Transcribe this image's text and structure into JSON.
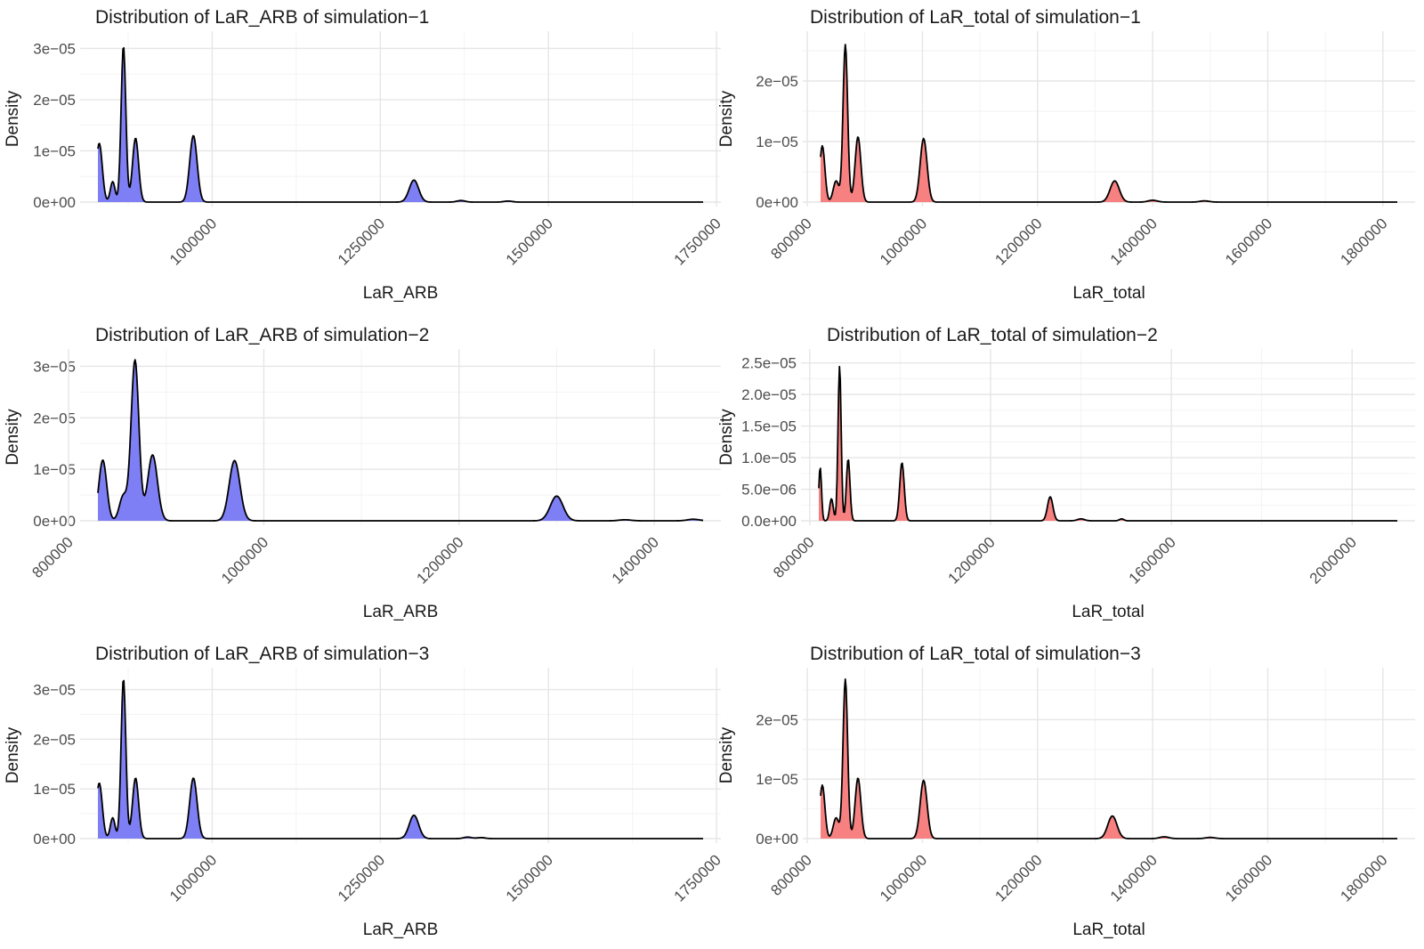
{
  "chart_data": [
    {
      "type": "area",
      "title": "Distribution of LaR_ARB of simulation−1",
      "xlabel": "LaR_ARB",
      "ylabel": "Density",
      "fill": "#7f7ff5",
      "xlim": [
        830000,
        1730000
      ],
      "ylim": [
        0,
        3.25e-05
      ],
      "x_ticks": [
        1000000,
        1250000,
        1500000,
        1750000
      ],
      "x_tick_labels": [
        "1000000",
        "1250000",
        "1500000",
        "1750000"
      ],
      "y_ticks": [
        0,
        1e-05,
        2e-05,
        3e-05
      ],
      "y_tick_labels": [
        "0e+00",
        "1e−05",
        "2e−05",
        "3e−05"
      ],
      "components": [
        {
          "mean": 832000,
          "sd": 4500,
          "height": 1.15e-05
        },
        {
          "mean": 852000,
          "sd": 3500,
          "height": 4e-06
        },
        {
          "mean": 868000,
          "sd": 3500,
          "height": 3.05e-05
        },
        {
          "mean": 886000,
          "sd": 4500,
          "height": 1.25e-05
        },
        {
          "mean": 972000,
          "sd": 5500,
          "height": 1.3e-05
        },
        {
          "mean": 1300000,
          "sd": 7000,
          "height": 4.3e-06
        },
        {
          "mean": 1370000,
          "sd": 6000,
          "height": 3e-07
        },
        {
          "mean": 1440000,
          "sd": 6000,
          "height": 2e-07
        }
      ]
    },
    {
      "type": "area",
      "title": "Distribution of LaR_total of simulation−1",
      "xlabel": "LaR_total",
      "ylabel": "Density",
      "fill": "#f78080",
      "xlim": [
        823000,
        1825000
      ],
      "ylim": [
        0,
        2.75e-05
      ],
      "x_ticks": [
        800000,
        1000000,
        1200000,
        1400000,
        1600000,
        1800000
      ],
      "x_tick_labels": [
        "800000",
        "1000000",
        "1200000",
        "1400000",
        "1600000",
        "1800000"
      ],
      "y_ticks": [
        0,
        1e-05,
        2e-05
      ],
      "y_tick_labels": [
        "0e+00",
        "1e−05",
        "2e−05"
      ],
      "components": [
        {
          "mean": 826000,
          "sd": 4500,
          "height": 9.3e-06
        },
        {
          "mean": 850000,
          "sd": 5000,
          "height": 3.5e-06
        },
        {
          "mean": 866000,
          "sd": 4000,
          "height": 2.6e-05
        },
        {
          "mean": 888000,
          "sd": 5000,
          "height": 1.08e-05
        },
        {
          "mean": 1002000,
          "sd": 6000,
          "height": 1.05e-05
        },
        {
          "mean": 1334000,
          "sd": 8000,
          "height": 3.5e-06
        },
        {
          "mean": 1400000,
          "sd": 8000,
          "height": 3e-07
        },
        {
          "mean": 1490000,
          "sd": 8000,
          "height": 2e-07
        }
      ]
    },
    {
      "type": "area",
      "title": "Distribution of LaR_ARB of simulation−2",
      "xlabel": "LaR_ARB",
      "ylabel": "Density",
      "fill": "#7f7ff5",
      "xlim": [
        830000,
        1450000
      ],
      "ylim": [
        0,
        3.25e-05
      ],
      "x_ticks": [
        800000,
        1000000,
        1200000,
        1400000
      ],
      "x_tick_labels": [
        "800000",
        "1000000",
        "1200000",
        "1400000"
      ],
      "y_ticks": [
        0,
        1e-05,
        2e-05,
        3e-05
      ],
      "y_tick_labels": [
        "0e+00",
        "1e−05",
        "2e−05",
        "3e−05"
      ],
      "components": [
        {
          "mean": 835000,
          "sd": 4000,
          "height": 1.18e-05
        },
        {
          "mean": 856000,
          "sd": 4000,
          "height": 4.8e-06
        },
        {
          "mean": 868000,
          "sd": 4000,
          "height": 3.12e-05
        },
        {
          "mean": 886000,
          "sd": 5000,
          "height": 1.28e-05
        },
        {
          "mean": 970000,
          "sd": 5500,
          "height": 1.17e-05
        },
        {
          "mean": 1300000,
          "sd": 6500,
          "height": 4.8e-06
        },
        {
          "mean": 1370000,
          "sd": 6000,
          "height": 2e-07
        },
        {
          "mean": 1440000,
          "sd": 6000,
          "height": 3e-07
        }
      ]
    },
    {
      "type": "area",
      "title": "Distribution of LaR_total of simulation−2",
      "xlabel": "LaR_total",
      "ylabel": "Density",
      "fill": "#f78080",
      "xlim": [
        820000,
        2100000
      ],
      "ylim": [
        0,
        2.65e-05
      ],
      "x_ticks": [
        800000,
        1200000,
        1600000,
        2000000
      ],
      "x_tick_labels": [
        "800000",
        "1200000",
        "1600000",
        "2000000"
      ],
      "y_ticks": [
        0,
        5e-06,
        1e-05,
        1.5e-05,
        2e-05,
        2.5e-05
      ],
      "y_tick_labels": [
        "0.0e+00",
        "5.0e−06",
        "1.0e−05",
        "1.5e−05",
        "2.0e−05",
        "2.5e−05"
      ],
      "components": [
        {
          "mean": 823000,
          "sd": 3000,
          "height": 8.5e-06
        },
        {
          "mean": 848000,
          "sd": 4000,
          "height": 3.5e-06
        },
        {
          "mean": 866000,
          "sd": 3500,
          "height": 2.45e-05
        },
        {
          "mean": 885000,
          "sd": 4000,
          "height": 9.8e-06
        },
        {
          "mean": 1004000,
          "sd": 5000,
          "height": 9.2e-06
        },
        {
          "mean": 1332000,
          "sd": 6000,
          "height": 3.8e-06
        },
        {
          "mean": 1400000,
          "sd": 8000,
          "height": 3e-07
        },
        {
          "mean": 1490000,
          "sd": 5000,
          "height": 3e-07
        }
      ]
    },
    {
      "type": "area",
      "title": "Distribution of LaR_ARB of simulation−3",
      "xlabel": "LaR_ARB",
      "ylabel": "Density",
      "fill": "#7f7ff5",
      "xlim": [
        830000,
        1730000
      ],
      "ylim": [
        0,
        3.35e-05
      ],
      "x_ticks": [
        1000000,
        1250000,
        1500000,
        1750000
      ],
      "x_tick_labels": [
        "1000000",
        "1250000",
        "1500000",
        "1750000"
      ],
      "y_ticks": [
        0,
        1e-05,
        2e-05,
        3e-05
      ],
      "y_tick_labels": [
        "0e+00",
        "1e−05",
        "2e−05",
        "3e−05"
      ],
      "components": [
        {
          "mean": 832000,
          "sd": 4500,
          "height": 1.12e-05
        },
        {
          "mean": 852000,
          "sd": 3500,
          "height": 4.2e-06
        },
        {
          "mean": 868000,
          "sd": 3500,
          "height": 3.22e-05
        },
        {
          "mean": 886000,
          "sd": 4500,
          "height": 1.22e-05
        },
        {
          "mean": 972000,
          "sd": 5500,
          "height": 1.22e-05
        },
        {
          "mean": 1300000,
          "sd": 7000,
          "height": 4.7e-06
        },
        {
          "mean": 1380000,
          "sd": 6000,
          "height": 3e-07
        },
        {
          "mean": 1400000,
          "sd": 6000,
          "height": 2e-07
        }
      ]
    },
    {
      "type": "area",
      "title": "Distribution of LaR_total of simulation−3",
      "xlabel": "LaR_total",
      "ylabel": "Density",
      "fill": "#f78080",
      "xlim": [
        823000,
        1825000
      ],
      "ylim": [
        0,
        2.8e-05
      ],
      "x_ticks": [
        800000,
        1000000,
        1200000,
        1400000,
        1600000,
        1800000
      ],
      "x_tick_labels": [
        "800000",
        "1000000",
        "1200000",
        "1400000",
        "1600000",
        "1800000"
      ],
      "y_ticks": [
        0,
        1e-05,
        2e-05
      ],
      "y_tick_labels": [
        "0e+00",
        "1e−05",
        "2e−05"
      ],
      "components": [
        {
          "mean": 826000,
          "sd": 4500,
          "height": 9e-06
        },
        {
          "mean": 850000,
          "sd": 5000,
          "height": 3.5e-06
        },
        {
          "mean": 866000,
          "sd": 4000,
          "height": 2.68e-05
        },
        {
          "mean": 888000,
          "sd": 5000,
          "height": 1.02e-05
        },
        {
          "mean": 1002000,
          "sd": 6000,
          "height": 9.8e-06
        },
        {
          "mean": 1330000,
          "sd": 8000,
          "height": 3.8e-06
        },
        {
          "mean": 1420000,
          "sd": 8000,
          "height": 3e-07
        },
        {
          "mean": 1500000,
          "sd": 8000,
          "height": 2e-07
        }
      ]
    }
  ]
}
